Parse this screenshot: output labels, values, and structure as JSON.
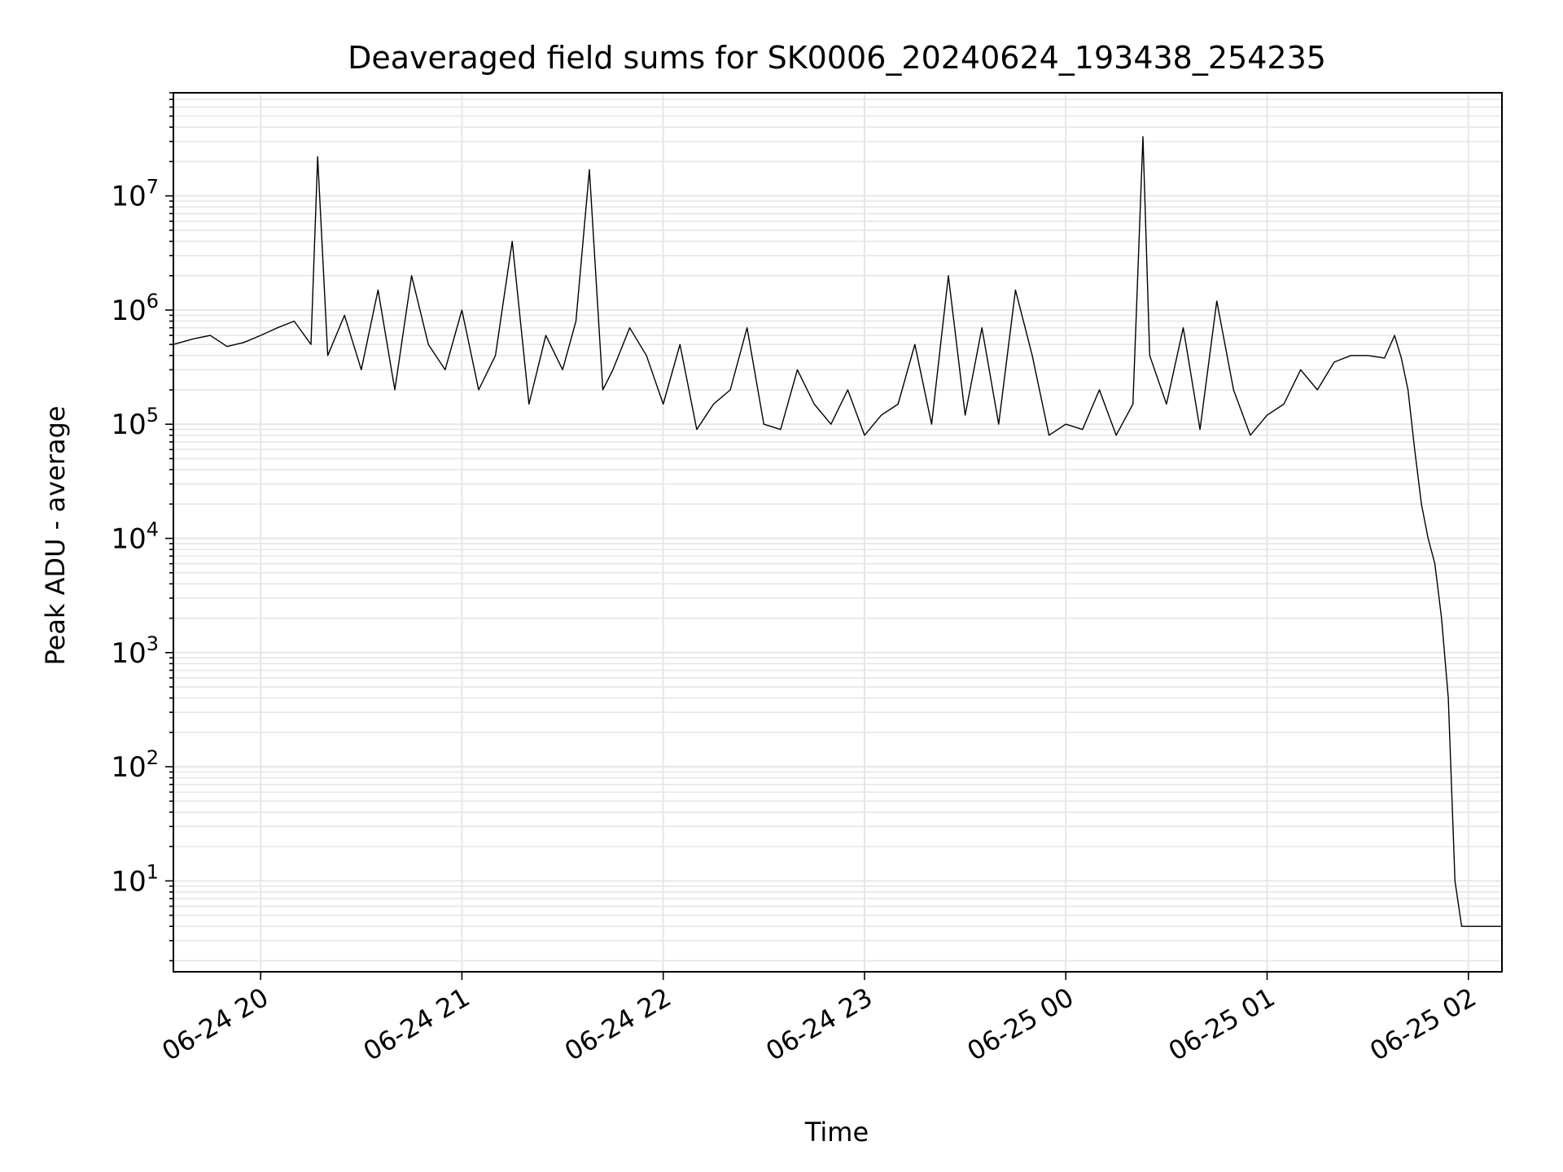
{
  "chart_data": {
    "type": "line",
    "title": "Deaveraged field sums for SK0006_20240624_193438_254235",
    "xlabel": "Time",
    "ylabel": "Peak ADU - average",
    "y_scale": "log",
    "grid": true,
    "legend": "none",
    "line_color": "#000000",
    "xlim": [
      "2024-06-24 19:34",
      "2024-06-25 02:10"
    ],
    "ylim": [
      1.6,
      80000000
    ],
    "x_ticks": [
      {
        "value": "2024-06-24 20:00",
        "label": "06-24 20"
      },
      {
        "value": "2024-06-24 21:00",
        "label": "06-24 21"
      },
      {
        "value": "2024-06-24 22:00",
        "label": "06-24 22"
      },
      {
        "value": "2024-06-24 23:00",
        "label": "06-24 23"
      },
      {
        "value": "2024-06-25 00:00",
        "label": "06-25 00"
      },
      {
        "value": "2024-06-25 01:00",
        "label": "06-25 01"
      },
      {
        "value": "2024-06-25 02:00",
        "label": "06-25 02"
      }
    ],
    "y_ticks": [
      {
        "value": 10,
        "base": "10",
        "exp": "1"
      },
      {
        "value": 100,
        "base": "10",
        "exp": "2"
      },
      {
        "value": 1000,
        "base": "10",
        "exp": "3"
      },
      {
        "value": 10000,
        "base": "10",
        "exp": "4"
      },
      {
        "value": 100000,
        "base": "10",
        "exp": "5"
      },
      {
        "value": 1000000,
        "base": "10",
        "exp": "6"
      },
      {
        "value": 10000000,
        "base": "10",
        "exp": "7"
      }
    ],
    "series": [
      {
        "x": [
          "2024-06-24 19:34",
          "2024-06-24 19:40",
          "2024-06-24 19:45",
          "2024-06-24 19:50",
          "2024-06-24 19:55",
          "2024-06-24 20:00",
          "2024-06-24 20:05",
          "2024-06-24 20:10",
          "2024-06-24 20:15",
          "2024-06-24 20:17",
          "2024-06-24 20:20",
          "2024-06-24 20:25",
          "2024-06-24 20:30",
          "2024-06-24 20:35",
          "2024-06-24 20:40",
          "2024-06-24 20:45",
          "2024-06-24 20:50",
          "2024-06-24 20:55",
          "2024-06-24 21:00",
          "2024-06-24 21:05",
          "2024-06-24 21:10",
          "2024-06-24 21:15",
          "2024-06-24 21:20",
          "2024-06-24 21:25",
          "2024-06-24 21:30",
          "2024-06-24 21:34",
          "2024-06-24 21:38",
          "2024-06-24 21:42",
          "2024-06-24 21:45",
          "2024-06-24 21:50",
          "2024-06-24 21:55",
          "2024-06-24 22:00",
          "2024-06-24 22:05",
          "2024-06-24 22:10",
          "2024-06-24 22:15",
          "2024-06-24 22:20",
          "2024-06-24 22:25",
          "2024-06-24 22:30",
          "2024-06-24 22:35",
          "2024-06-24 22:40",
          "2024-06-24 22:45",
          "2024-06-24 22:50",
          "2024-06-24 22:55",
          "2024-06-24 23:00",
          "2024-06-24 23:05",
          "2024-06-24 23:10",
          "2024-06-24 23:15",
          "2024-06-24 23:20",
          "2024-06-24 23:25",
          "2024-06-24 23:30",
          "2024-06-24 23:35",
          "2024-06-24 23:40",
          "2024-06-24 23:45",
          "2024-06-24 23:50",
          "2024-06-24 23:55",
          "2024-06-25 00:00",
          "2024-06-25 00:05",
          "2024-06-25 00:10",
          "2024-06-25 00:15",
          "2024-06-25 00:20",
          "2024-06-25 00:23",
          "2024-06-25 00:25",
          "2024-06-25 00:30",
          "2024-06-25 00:35",
          "2024-06-25 00:40",
          "2024-06-25 00:45",
          "2024-06-25 00:50",
          "2024-06-25 00:55",
          "2024-06-25 01:00",
          "2024-06-25 01:05",
          "2024-06-25 01:10",
          "2024-06-25 01:15",
          "2024-06-25 01:20",
          "2024-06-25 01:25",
          "2024-06-25 01:30",
          "2024-06-25 01:35",
          "2024-06-25 01:38",
          "2024-06-25 01:40",
          "2024-06-25 01:42",
          "2024-06-25 01:44",
          "2024-06-25 01:46",
          "2024-06-25 01:48",
          "2024-06-25 01:50",
          "2024-06-25 01:52",
          "2024-06-25 01:54",
          "2024-06-25 01:56",
          "2024-06-25 01:58",
          "2024-06-25 01:59",
          "2024-06-25 02:00",
          "2024-06-25 02:01",
          "2024-06-25 02:02",
          "2024-06-25 02:04",
          "2024-06-25 02:06",
          "2024-06-25 02:08",
          "2024-06-25 02:10"
        ],
        "y": [
          500000,
          560000,
          600000,
          480000,
          520000,
          600000,
          700000,
          800000,
          500000,
          22000000,
          400000,
          900000,
          300000,
          1500000,
          200000,
          2000000,
          500000,
          300000,
          1000000,
          200000,
          400000,
          4000000,
          150000,
          600000,
          300000,
          800000,
          17000000,
          200000,
          300000,
          700000,
          400000,
          150000,
          500000,
          90000,
          150000,
          200000,
          700000,
          100000,
          90000,
          300000,
          150000,
          100000,
          200000,
          80000,
          120000,
          150000,
          500000,
          100000,
          2000000,
          120000,
          700000,
          100000,
          1500000,
          400000,
          80000,
          100000,
          90000,
          200000,
          80000,
          150000,
          33000000,
          400000,
          150000,
          700000,
          90000,
          1200000,
          200000,
          80000,
          120000,
          150000,
          300000,
          200000,
          350000,
          400000,
          400000,
          380000,
          600000,
          380000,
          200000,
          60000,
          20000,
          10000,
          6000,
          2000,
          400,
          10,
          4,
          4,
          4,
          4,
          4,
          4,
          4,
          4,
          4
        ]
      }
    ]
  }
}
